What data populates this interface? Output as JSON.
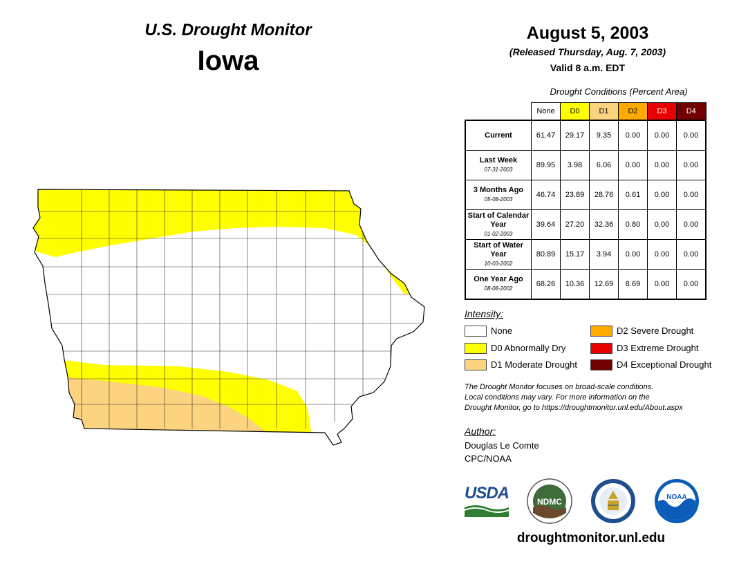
{
  "header": {
    "title": "U.S. Drought Monitor",
    "state": "Iowa",
    "date": "August 5, 2003",
    "released": "(Released Thursday, Aug. 7, 2003)",
    "valid": "Valid 8 a.m. EDT"
  },
  "table": {
    "caption": "Drought Conditions (Percent Area)",
    "columns": [
      {
        "label": "None",
        "color": "#ffffff"
      },
      {
        "label": "D0",
        "color": "#ffff00"
      },
      {
        "label": "D1",
        "color": "#fcd37f"
      },
      {
        "label": "D2",
        "color": "#ffaa00"
      },
      {
        "label": "D3",
        "color": "#e60000"
      },
      {
        "label": "D4",
        "color": "#730000"
      }
    ],
    "rows": [
      {
        "label": "Current",
        "sub": "",
        "values": [
          "61.47",
          "29.17",
          "9.35",
          "0.00",
          "0.00",
          "0.00"
        ]
      },
      {
        "label": "Last Week",
        "sub": "07-31-2003",
        "values": [
          "89.95",
          "3.98",
          "6.06",
          "0.00",
          "0.00",
          "0.00"
        ]
      },
      {
        "label": "3 Months Ago",
        "sub": "05-08-2003",
        "values": [
          "46.74",
          "23.89",
          "28.76",
          "0.61",
          "0.00",
          "0.00"
        ]
      },
      {
        "label": "Start of Calendar Year",
        "sub": "01-02-2003",
        "values": [
          "39.64",
          "27.20",
          "32.36",
          "0.80",
          "0.00",
          "0.00"
        ]
      },
      {
        "label": "Start of Water Year",
        "sub": "10-03-2002",
        "values": [
          "80.89",
          "15.17",
          "3.94",
          "0.00",
          "0.00",
          "0.00"
        ]
      },
      {
        "label": "One Year Ago",
        "sub": "08-08-2002",
        "values": [
          "68.26",
          "10.36",
          "12.69",
          "8.69",
          "0.00",
          "0.00"
        ]
      }
    ]
  },
  "legend": {
    "title": "Intensity:",
    "items": [
      {
        "label": "None",
        "color": "#ffffff"
      },
      {
        "label": "D0 Abnormally Dry",
        "color": "#ffff00"
      },
      {
        "label": "D1 Moderate Drought",
        "color": "#fcd37f"
      },
      {
        "label": "D2 Severe Drought",
        "color": "#ffaa00"
      },
      {
        "label": "D3 Extreme Drought",
        "color": "#e60000"
      },
      {
        "label": "D4 Exceptional Drought",
        "color": "#730000"
      }
    ]
  },
  "note": {
    "line1": "The Drought Monitor focuses on broad-scale conditions.",
    "line2": "Local conditions may vary. For more information on the",
    "line3": "Drought Monitor, go to https://droughtmonitor.unl.edu/About.aspx"
  },
  "author": {
    "title": "Author:",
    "name": "Douglas Le Comte",
    "org": "CPC/NOAA"
  },
  "logos": {
    "usda": "USDA",
    "ndmc": "NDMC",
    "noaa": "NOAA"
  },
  "website": "droughtmonitor.unl.edu"
}
